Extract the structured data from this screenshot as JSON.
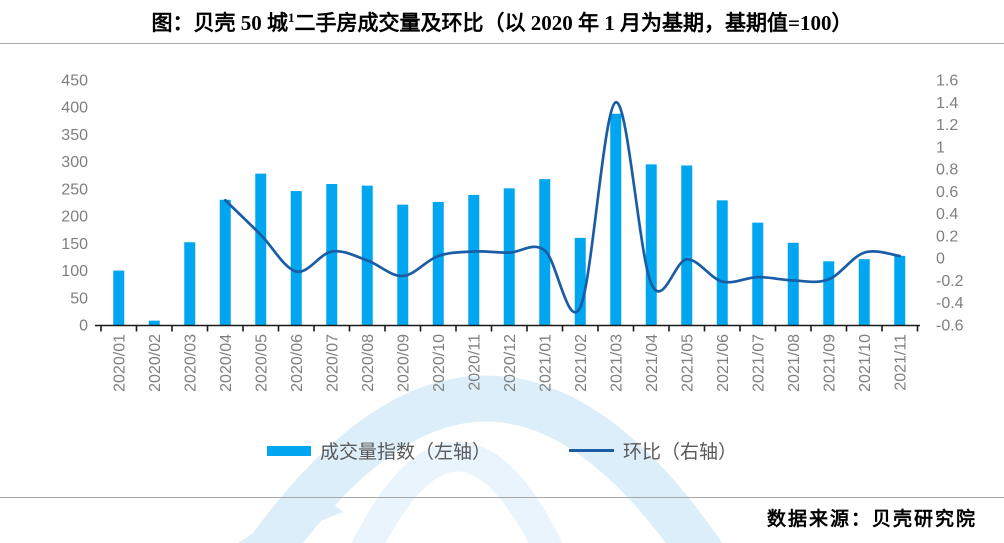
{
  "title": {
    "prefix": "图：贝壳 50 城",
    "superscript": "1",
    "suffix": "二手房成交量及环比（以 2020 年 1 月为基期，基期值=100）"
  },
  "source": {
    "label": "数据来源：贝壳研究院"
  },
  "legend": [
    {
      "label": "成交量指数（左轴）",
      "type": "bar",
      "color": "#00A7F0"
    },
    {
      "label": "环比（右轴）",
      "type": "line",
      "color": "#1A5CA5"
    }
  ],
  "colors": {
    "bar": "#00A7F0",
    "line": "#1A5CA5",
    "axis_text": "#7F7F7F",
    "axis_line": "#1a1a1a",
    "legend_text": "#595959",
    "divider": "#a8a8a8",
    "watermark_main": "#DCEEF9",
    "watermark_light": "#E9F4FC"
  },
  "chart_data": {
    "type": "bar+line combo",
    "title": "图：贝壳 50 城1二手房成交量及环比（以 2020 年 1 月为基期，基期值=100）",
    "grid": false,
    "legend_position": "bottom",
    "categories": [
      "2020/01",
      "2020/02",
      "2020/03",
      "2020/04",
      "2020/05",
      "2020/06",
      "2020/07",
      "2020/08",
      "2020/09",
      "2020/10",
      "2020/11",
      "2020/12",
      "2021/01",
      "2021/02",
      "2021/03",
      "2021/04",
      "2021/05",
      "2021/06",
      "2021/07",
      "2021/08",
      "2021/09",
      "2021/10",
      "2021/11"
    ],
    "series": [
      {
        "name": "成交量指数（左轴）",
        "type": "bar",
        "axis": "left",
        "color": "#00A7F0",
        "values": [
          100,
          8,
          152,
          230,
          278,
          246,
          259,
          256,
          221,
          226,
          239,
          251,
          268,
          160,
          388,
          295,
          293,
          229,
          188,
          151,
          117,
          121,
          127
        ]
      },
      {
        "name": "环比（右轴）",
        "type": "line",
        "axis": "right",
        "color": "#1A5CA5",
        "values": [
          null,
          null,
          null,
          0.52,
          0.21,
          -0.12,
          0.06,
          -0.02,
          -0.16,
          0.02,
          0.06,
          0.05,
          0.07,
          -0.44,
          1.4,
          -0.23,
          -0.01,
          -0.21,
          -0.17,
          -0.2,
          -0.19,
          0.05,
          0.02
        ]
      }
    ],
    "left_axis": {
      "min": 0,
      "max": 450,
      "step": 50,
      "ticks": [
        450,
        400,
        350,
        300,
        250,
        200,
        150,
        100,
        50,
        0
      ]
    },
    "right_axis": {
      "min": -0.6,
      "max": 1.6,
      "step": 0.2,
      "ticks": [
        "1.6",
        "1.4",
        "1.2",
        "1",
        "0.8",
        "0.6",
        "0.4",
        "0.2",
        "0",
        "-0.2",
        "-0.4",
        "-0.6"
      ]
    }
  }
}
